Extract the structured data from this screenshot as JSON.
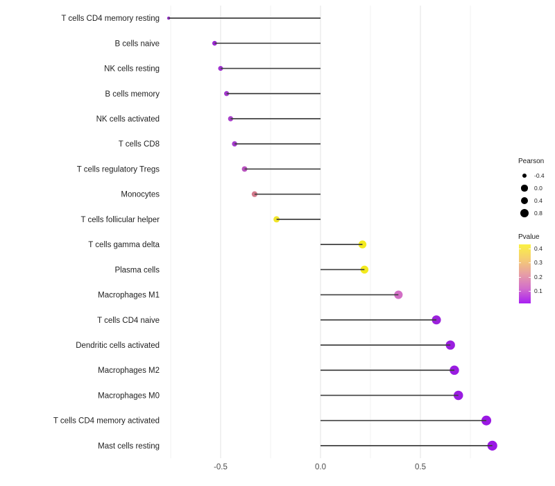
{
  "figure": {
    "background": "#FFFFFF",
    "stem_color": "#3F3F3F",
    "grid_major_color": "#E3E3E3",
    "grid_minor_color": "#F2F2F2",
    "axis_tick_text_color": "#4B4B4B",
    "category_text_color": "#1F1F1F"
  },
  "chart_data": {
    "type": "scatter",
    "subtype": "lollipop-horizontal",
    "title": "",
    "xlabel": "",
    "ylabel": "",
    "categories": [
      "T cells CD4 memory resting",
      "B cells naive",
      "NK cells resting",
      "B cells memory",
      "NK cells activated",
      "T cells CD8",
      "T cells regulatory  Tregs",
      "Monocytes",
      "T cells follicular helper",
      "T cells gamma delta",
      "Plasma cells",
      "Macrophages M1",
      "T cells CD4 naive",
      "Dendritic cells activated",
      "Macrophages M2",
      "Macrophages M0",
      "T cells CD4 memory activated",
      "Mast cells resting"
    ],
    "series": [
      {
        "name": "Pearson",
        "values": [
          -0.76,
          -0.53,
          -0.5,
          -0.47,
          -0.45,
          -0.43,
          -0.38,
          -0.33,
          -0.22,
          0.21,
          0.22,
          0.39,
          0.58,
          0.65,
          0.67,
          0.69,
          0.83,
          0.86
        ]
      }
    ],
    "point_colors": [
      "#9430C6",
      "#9C2AD3",
      "#9F31D0",
      "#A338CD",
      "#A840CA",
      "#A43BCC",
      "#B852BE",
      "#D2798B",
      "#F1E52B",
      "#F3EA1E",
      "#F3EA1E",
      "#D26FC5",
      "#9B21DC",
      "#9A1EDF",
      "#991CE1",
      "#991CE1",
      "#9A18E4",
      "#9A18E4"
    ],
    "baseline": 0,
    "xlim": [
      -0.78,
      0.94
    ],
    "x_tick_labels": [
      "-0.5",
      "0.0",
      "0.5"
    ],
    "x_tick_values": [
      -0.5,
      0.0,
      0.5
    ],
    "x_minor_tick_values": [
      -0.75,
      -0.25,
      0.25,
      0.75
    ],
    "grid": "vertical major and minor gridlines only, white background",
    "legend_position": "right",
    "size_legend": {
      "title": "Pearson",
      "dot_color": "#000000",
      "entries": [
        {
          "label": "-0.4",
          "value": -0.4
        },
        {
          "label": "0.0",
          "value": 0.0
        },
        {
          "label": "0.4",
          "value": 0.4
        },
        {
          "label": "0.8",
          "value": 0.8
        }
      ]
    },
    "color_legend": {
      "title": "Pvalue",
      "tick_labels": [
        "0.4",
        "0.3",
        "0.2",
        "0.1"
      ],
      "gradient_top_to_bottom": [
        "#FAF143",
        "#F5CD72",
        "#E79FA4",
        "#D26DCB",
        "#A81FF2"
      ]
    }
  }
}
